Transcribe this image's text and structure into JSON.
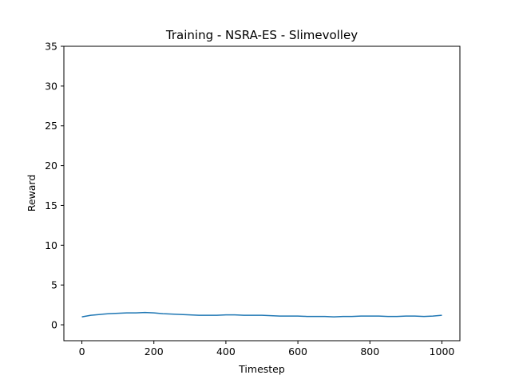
{
  "chart_data": {
    "type": "line",
    "title": "Training - NSRA-ES - Slimevolley",
    "xlabel": "Timestep",
    "ylabel": "Reward",
    "xlim": [
      -50,
      1050
    ],
    "ylim": [
      -2,
      35
    ],
    "xticks": [
      0,
      200,
      400,
      600,
      800,
      1000
    ],
    "yticks": [
      0,
      5,
      10,
      15,
      20,
      25,
      30,
      35
    ],
    "grid": false,
    "color": "#1f77b4",
    "series": [
      {
        "x": [
          0,
          25,
          50,
          75,
          100,
          125,
          150,
          175,
          200,
          225,
          250,
          275,
          300,
          325,
          350,
          375,
          400,
          425,
          450,
          475,
          500,
          525,
          550,
          575,
          600,
          625,
          650,
          675,
          700,
          725,
          750,
          775,
          800,
          825,
          850,
          875,
          900,
          925,
          950,
          975,
          1000
        ],
        "values": [
          1.0,
          1.2,
          1.3,
          1.4,
          1.45,
          1.5,
          1.5,
          1.55,
          1.5,
          1.4,
          1.35,
          1.3,
          1.25,
          1.2,
          1.2,
          1.2,
          1.25,
          1.25,
          1.2,
          1.2,
          1.2,
          1.15,
          1.1,
          1.1,
          1.1,
          1.05,
          1.05,
          1.05,
          1.0,
          1.05,
          1.05,
          1.1,
          1.1,
          1.1,
          1.05,
          1.05,
          1.1,
          1.1,
          1.05,
          1.1,
          1.2
        ]
      }
    ]
  }
}
